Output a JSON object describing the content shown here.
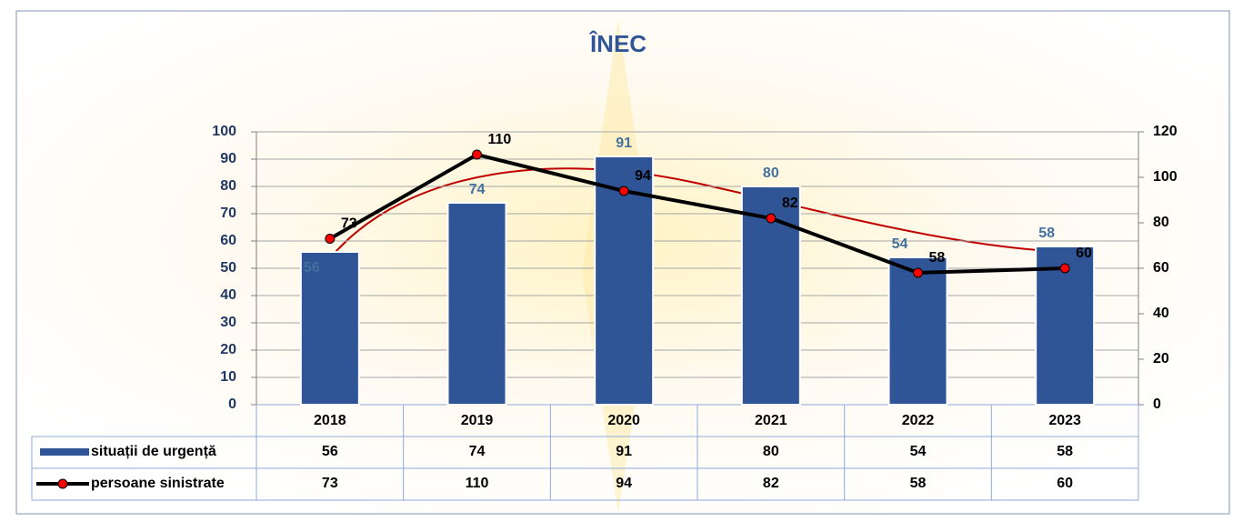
{
  "chart_data": {
    "type": "bar",
    "title": "ÎNEC",
    "categories": [
      "2018",
      "2019",
      "2020",
      "2021",
      "2022",
      "2023"
    ],
    "series": [
      {
        "name": "situații de urgență",
        "color": "#2f5597",
        "values": [
          56,
          74,
          91,
          80,
          54,
          58
        ]
      },
      {
        "name": "persoane sinistrate",
        "type": "line",
        "axis": "y2",
        "color": "#000000",
        "marker_color": "#ff0000",
        "values": [
          73,
          110,
          94,
          82,
          58,
          60
        ]
      }
    ],
    "ylim": [
      0,
      100
    ],
    "yticks": [
      0,
      10,
      20,
      30,
      40,
      50,
      60,
      70,
      80,
      90,
      100
    ],
    "y2lim": [
      0,
      120
    ],
    "y2ticks": [
      0,
      20,
      40,
      60,
      80,
      100,
      120
    ],
    "grid": true
  }
}
